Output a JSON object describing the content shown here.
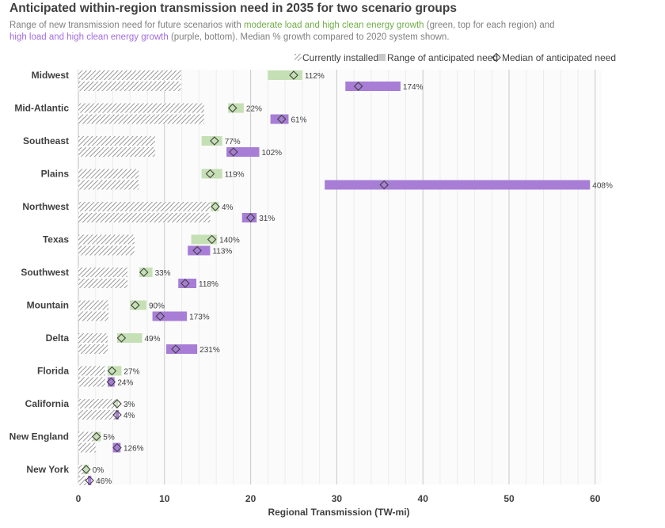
{
  "title": "Anticipated within-region transmission need in 2035 for two scenario groups",
  "subtitle": {
    "part1": "Range of new transmission need for future scenarios with ",
    "green_phrase": "moderate load and high clean energy growth",
    "part2": " (green, top for each region) and",
    "purple_phrase": "high load and high clean energy growth",
    "part3": " (purple, bottom). Median % growth compared to 2020 system shown."
  },
  "legend": {
    "installed": "Currently installed",
    "range": "Range of anticipated need",
    "median": "Median of anticipated need"
  },
  "colors": {
    "green": "#c5e0b4",
    "purple": "#a77dd6",
    "hatch": "#7f7f7f",
    "grid": "#d9d9d9",
    "text": "#404040"
  },
  "chart_data": {
    "type": "bar",
    "xlabel": "Regional Transmission (TW-mi)",
    "ylabel": "",
    "xlim": [
      0,
      60
    ],
    "xticks": [
      0,
      10,
      20,
      30,
      40,
      50,
      60
    ],
    "grid": "vertical",
    "legend_position": "top-right",
    "regions": [
      {
        "name": "Midwest",
        "installed": 11.9,
        "green": {
          "min": 22.0,
          "max": 26.0,
          "median": 25.0,
          "label": "112%"
        },
        "purple": {
          "min": 31.0,
          "max": 37.4,
          "median": 32.5,
          "label": "174%"
        }
      },
      {
        "name": "Mid-Atlantic",
        "installed": 14.6,
        "green": {
          "min": 17.4,
          "max": 19.2,
          "median": 17.9,
          "label": "22%"
        },
        "purple": {
          "min": 22.3,
          "max": 24.4,
          "median": 23.6,
          "label": "61%"
        }
      },
      {
        "name": "Southeast",
        "installed": 8.9,
        "green": {
          "min": 14.3,
          "max": 16.7,
          "median": 15.8,
          "label": "77%"
        },
        "purple": {
          "min": 17.2,
          "max": 21.0,
          "median": 18.0,
          "label": "102%"
        }
      },
      {
        "name": "Plains",
        "installed": 7.0,
        "green": {
          "min": 14.3,
          "max": 16.7,
          "median": 15.3,
          "label": "119%"
        },
        "purple": {
          "min": 28.6,
          "max": 59.4,
          "median": 35.5,
          "label": "408%"
        }
      },
      {
        "name": "Northwest",
        "installed": 15.3,
        "green": {
          "min": 15.4,
          "max": 16.3,
          "median": 15.9,
          "label": "4%"
        },
        "purple": {
          "min": 19.0,
          "max": 20.7,
          "median": 20.0,
          "label": "31%"
        }
      },
      {
        "name": "Texas",
        "installed": 6.5,
        "green": {
          "min": 13.1,
          "max": 16.1,
          "median": 15.5,
          "label": "140%"
        },
        "purple": {
          "min": 12.7,
          "max": 15.3,
          "median": 13.8,
          "label": "113%"
        }
      },
      {
        "name": "Southwest",
        "installed": 5.7,
        "green": {
          "min": 7.1,
          "max": 8.6,
          "median": 7.6,
          "label": "33%"
        },
        "purple": {
          "min": 11.6,
          "max": 13.7,
          "median": 12.4,
          "label": "118%"
        }
      },
      {
        "name": "Mountain",
        "installed": 3.5,
        "green": {
          "min": 6.0,
          "max": 7.9,
          "median": 6.6,
          "label": "90%"
        },
        "purple": {
          "min": 8.6,
          "max": 12.6,
          "median": 9.5,
          "label": "173%"
        }
      },
      {
        "name": "Delta",
        "installed": 3.4,
        "green": {
          "min": 4.5,
          "max": 7.4,
          "median": 5.0,
          "label": "49%"
        },
        "purple": {
          "min": 10.2,
          "max": 13.8,
          "median": 11.3,
          "label": "231%"
        }
      },
      {
        "name": "Florida",
        "installed": 3.1,
        "green": {
          "min": 3.4,
          "max": 5.0,
          "median": 3.9,
          "label": "27%"
        },
        "purple": {
          "min": 3.4,
          "max": 4.2,
          "median": 3.8,
          "label": "24%"
        }
      },
      {
        "name": "California",
        "installed": 4.3,
        "green": {
          "min": 4.3,
          "max": 4.6,
          "median": 4.5,
          "label": "3%"
        },
        "purple": {
          "min": 4.3,
          "max": 4.7,
          "median": 4.5,
          "label": "4%"
        }
      },
      {
        "name": "New England",
        "installed": 2.0,
        "green": {
          "min": 1.8,
          "max": 2.6,
          "median": 2.1,
          "label": "5%"
        },
        "purple": {
          "min": 4.0,
          "max": 4.9,
          "median": 4.5,
          "label": "126%"
        }
      },
      {
        "name": "New York",
        "installed": 0.9,
        "green": {
          "min": 0.6,
          "max": 1.2,
          "median": 0.9,
          "label": "0%"
        },
        "purple": {
          "min": 1.1,
          "max": 1.5,
          "median": 1.3,
          "label": "46%"
        }
      }
    ]
  }
}
